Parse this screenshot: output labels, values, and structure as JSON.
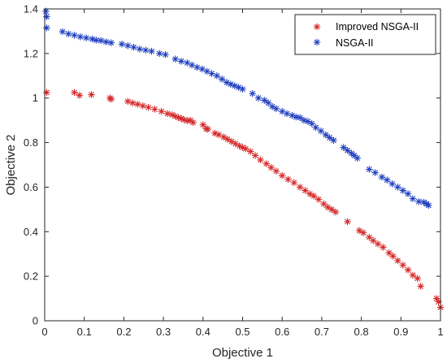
{
  "chart_data": {
    "type": "scatter",
    "xlabel": "Objective 1",
    "ylabel": "Objective 2",
    "xlim": [
      0,
      1
    ],
    "ylim": [
      0,
      1.4
    ],
    "xticks": [
      "0",
      "0.1",
      "0.2",
      "0.3",
      "0.4",
      "0.5",
      "0.6",
      "0.7",
      "0.8",
      "0.9",
      "1"
    ],
    "yticks": [
      "0",
      "0.2",
      "0.4",
      "0.6",
      "0.8",
      "1",
      "1.2",
      "1.4"
    ],
    "xtick_values": [
      0,
      0.1,
      0.2,
      0.3,
      0.4,
      0.5,
      0.6,
      0.7,
      0.8,
      0.9,
      1
    ],
    "ytick_values": [
      0,
      0.2,
      0.4,
      0.6,
      0.8,
      1,
      1.2,
      1.4
    ],
    "grid": false,
    "legend_position": "top-right",
    "marker": "asterisk",
    "series": [
      {
        "name": "Improved NSGA-II",
        "color": "#d62728",
        "x": [
          0.005,
          0.075,
          0.088,
          0.118,
          0.165,
          0.168,
          0.21,
          0.222,
          0.235,
          0.248,
          0.262,
          0.278,
          0.295,
          0.31,
          0.322,
          0.33,
          0.338,
          0.345,
          0.352,
          0.36,
          0.368,
          0.375,
          0.4,
          0.408,
          0.412,
          0.43,
          0.44,
          0.452,
          0.462,
          0.472,
          0.482,
          0.492,
          0.5,
          0.508,
          0.52,
          0.532,
          0.545,
          0.56,
          0.572,
          0.585,
          0.6,
          0.615,
          0.63,
          0.645,
          0.658,
          0.67,
          0.68,
          0.692,
          0.705,
          0.715,
          0.725,
          0.735,
          0.765,
          0.795,
          0.805,
          0.82,
          0.83,
          0.842,
          0.855,
          0.87,
          0.88,
          0.892,
          0.905,
          0.918,
          0.93,
          0.942,
          0.95,
          0.99,
          0.995,
          1.0
        ],
        "y": [
          1.025,
          1.025,
          1.012,
          1.015,
          1.0,
          0.995,
          0.985,
          0.978,
          0.972,
          0.965,
          0.958,
          0.95,
          0.94,
          0.93,
          0.925,
          0.918,
          0.912,
          0.908,
          0.903,
          0.898,
          0.9,
          0.89,
          0.88,
          0.862,
          0.86,
          0.842,
          0.835,
          0.825,
          0.815,
          0.805,
          0.795,
          0.785,
          0.778,
          0.772,
          0.76,
          0.742,
          0.722,
          0.705,
          0.688,
          0.672,
          0.652,
          0.635,
          0.62,
          0.6,
          0.585,
          0.57,
          0.56,
          0.545,
          0.525,
          0.51,
          0.5,
          0.488,
          0.445,
          0.405,
          0.395,
          0.375,
          0.36,
          0.345,
          0.33,
          0.305,
          0.29,
          0.27,
          0.25,
          0.228,
          0.205,
          0.19,
          0.155,
          0.1,
          0.085,
          0.06
        ]
      },
      {
        "name": "NSGA-II",
        "color": "#1f3fbf",
        "x": [
          0.003,
          0.005,
          0.005,
          0.045,
          0.06,
          0.075,
          0.09,
          0.105,
          0.12,
          0.13,
          0.142,
          0.155,
          0.168,
          0.195,
          0.21,
          0.225,
          0.24,
          0.255,
          0.27,
          0.29,
          0.305,
          0.33,
          0.345,
          0.36,
          0.372,
          0.385,
          0.398,
          0.41,
          0.422,
          0.435,
          0.448,
          0.46,
          0.47,
          0.48,
          0.49,
          0.5,
          0.525,
          0.54,
          0.555,
          0.565,
          0.575,
          0.585,
          0.6,
          0.612,
          0.625,
          0.635,
          0.645,
          0.655,
          0.665,
          0.675,
          0.685,
          0.698,
          0.71,
          0.72,
          0.73,
          0.755,
          0.765,
          0.775,
          0.782,
          0.79,
          0.82,
          0.835,
          0.852,
          0.865,
          0.878,
          0.892,
          0.905,
          0.918,
          0.93,
          0.945,
          0.958,
          0.965,
          0.97
        ],
        "y": [
          1.39,
          1.365,
          1.315,
          1.298,
          1.288,
          1.282,
          1.275,
          1.27,
          1.265,
          1.26,
          1.258,
          1.252,
          1.248,
          1.242,
          1.235,
          1.228,
          1.22,
          1.215,
          1.21,
          1.2,
          1.195,
          1.175,
          1.165,
          1.158,
          1.148,
          1.138,
          1.13,
          1.12,
          1.11,
          1.1,
          1.085,
          1.07,
          1.062,
          1.055,
          1.048,
          1.04,
          1.02,
          1.0,
          0.99,
          0.978,
          0.962,
          0.952,
          0.94,
          0.93,
          0.922,
          0.915,
          0.912,
          0.9,
          0.895,
          0.885,
          0.868,
          0.852,
          0.835,
          0.822,
          0.81,
          0.778,
          0.765,
          0.752,
          0.742,
          0.73,
          0.68,
          0.665,
          0.645,
          0.632,
          0.615,
          0.6,
          0.585,
          0.57,
          0.548,
          0.535,
          0.532,
          0.525,
          0.518
        ]
      }
    ]
  }
}
